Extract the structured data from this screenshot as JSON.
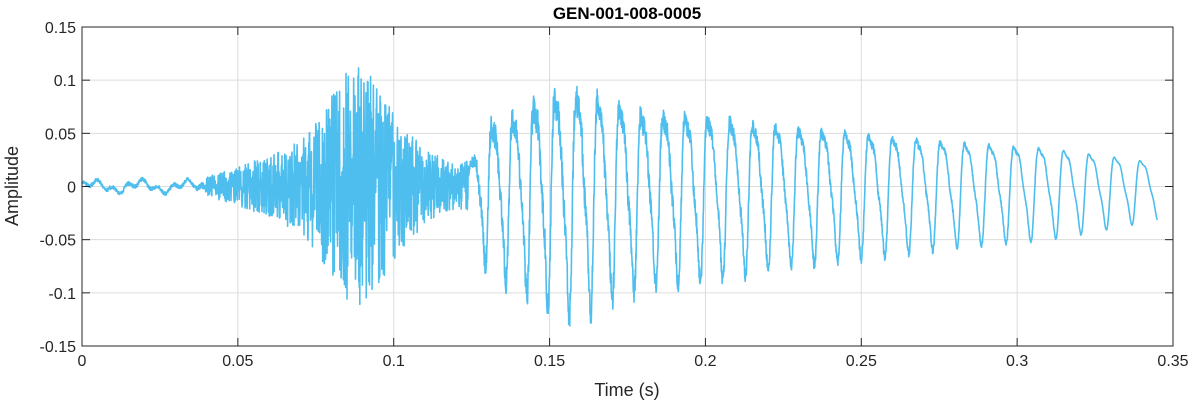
{
  "chart_data": {
    "type": "line",
    "title": "GEN-001-008-0005",
    "xlabel": "Time (s)",
    "ylabel": "Amplitude",
    "xlim": [
      0,
      0.35
    ],
    "ylim": [
      -0.15,
      0.15
    ],
    "x_ticks": [
      0,
      0.05,
      0.1,
      0.15,
      0.2,
      0.25,
      0.3,
      0.35
    ],
    "x_tick_labels": [
      "0",
      "0.05",
      "0.1",
      "0.15",
      "0.2",
      "0.25",
      "0.3",
      "0.35"
    ],
    "y_ticks": [
      -0.15,
      -0.1,
      -0.05,
      0,
      0.05,
      0.1,
      0.15
    ],
    "y_tick_labels": [
      "-0.15",
      "-0.1",
      "-0.05",
      "0",
      "0.05",
      "0.1",
      "0.15"
    ],
    "grid": true,
    "box": true,
    "colors": {
      "series": "#4DBEEE",
      "grid": "#dcdcdc",
      "axis": "#262626"
    },
    "series": [
      {
        "duration": 0.345,
        "envelope": [
          [
            0.0,
            0.005
          ],
          [
            0.035,
            0.005
          ],
          [
            0.05,
            0.018
          ],
          [
            0.065,
            0.035
          ],
          [
            0.075,
            0.06
          ],
          [
            0.085,
            0.115
          ],
          [
            0.092,
            0.11
          ],
          [
            0.1,
            0.07
          ],
          [
            0.11,
            0.035
          ],
          [
            0.12,
            0.02
          ],
          [
            0.124,
            0.025
          ],
          [
            0.13,
            0.075
          ],
          [
            0.14,
            0.09
          ],
          [
            0.15,
            0.11
          ],
          [
            0.16,
            0.115
          ],
          [
            0.18,
            0.09
          ],
          [
            0.2,
            0.085
          ],
          [
            0.22,
            0.075
          ],
          [
            0.25,
            0.065
          ],
          [
            0.28,
            0.055
          ],
          [
            0.31,
            0.048
          ],
          [
            0.33,
            0.038
          ],
          [
            0.345,
            0.03
          ]
        ],
        "voiced_segment": {
          "start": 0.124,
          "end": 0.345,
          "period_start": 0.0066,
          "period_end": 0.0083
        }
      }
    ]
  }
}
